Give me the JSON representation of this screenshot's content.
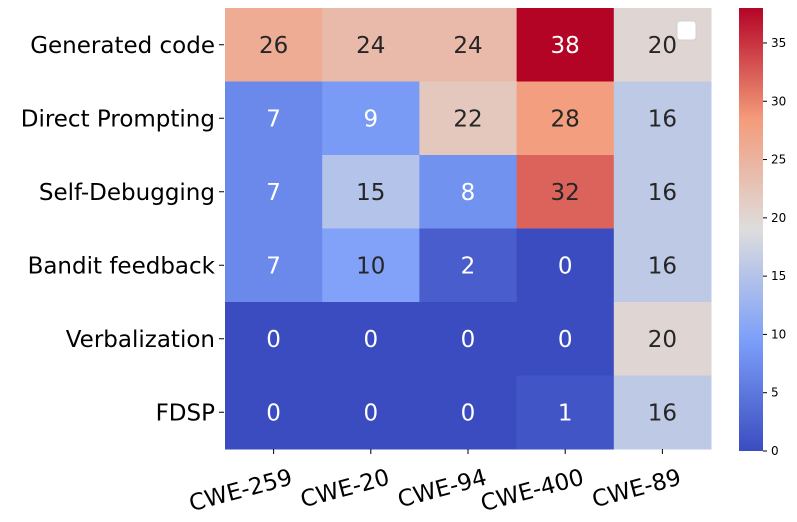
{
  "chart_data": {
    "type": "heatmap",
    "rows": [
      "Generated code",
      "Direct Prompting",
      "Self-Debugging",
      "Bandit feedback",
      "Verbalization",
      "FDSP"
    ],
    "columns": [
      "CWE-259",
      "CWE-20",
      "CWE-94",
      "CWE-400",
      "CWE-89"
    ],
    "values": [
      [
        26,
        24,
        24,
        38,
        20
      ],
      [
        7,
        9,
        22,
        28,
        16
      ],
      [
        7,
        15,
        8,
        32,
        16
      ],
      [
        7,
        10,
        2,
        0,
        16
      ],
      [
        0,
        0,
        0,
        0,
        20
      ],
      [
        0,
        0,
        0,
        1,
        16
      ]
    ],
    "colormap": "coolwarm",
    "vmin": 0,
    "vmax": 38,
    "colorbar_ticks": [
      0,
      5,
      10,
      15,
      20,
      25,
      30,
      35
    ],
    "colorbar_tick_labels": [
      "0",
      "5",
      "10",
      "15",
      "20",
      "25",
      "30",
      "35"
    ],
    "annotated": true,
    "legend_placement": "top-right (empty)",
    "x_tick_rotation_deg": 15
  }
}
